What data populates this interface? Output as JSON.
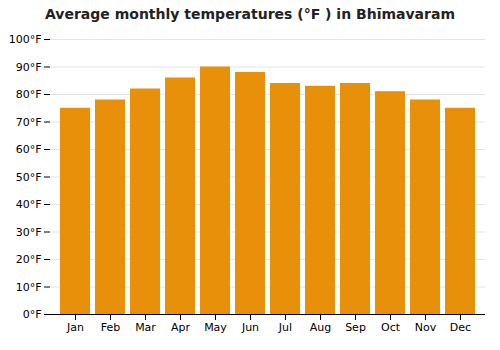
{
  "chart_data": {
    "type": "bar",
    "title": "Average monthly temperatures (°F ) in Bhīmavaram",
    "categories": [
      "Jan",
      "Feb",
      "Mar",
      "Apr",
      "May",
      "Jun",
      "Jul",
      "Aug",
      "Sep",
      "Oct",
      "Nov",
      "Dec"
    ],
    "values": [
      75,
      78,
      82,
      86,
      90,
      88,
      84,
      83,
      84,
      81,
      78,
      75
    ],
    "color": "#E8900A",
    "ylim": [
      0,
      100
    ],
    "yticks": [
      {
        "value": 0,
        "label": "0°F"
      },
      {
        "value": 10,
        "label": "10°F"
      },
      {
        "value": 20,
        "label": "20°F"
      },
      {
        "value": 30,
        "label": "30°F"
      },
      {
        "value": 40,
        "label": "40°F"
      },
      {
        "value": 50,
        "label": "50°F"
      },
      {
        "value": 60,
        "label": "60°F"
      },
      {
        "value": 70,
        "label": "70°F"
      },
      {
        "value": 80,
        "label": "80°F"
      },
      {
        "value": 90,
        "label": "90°F"
      },
      {
        "value": 100,
        "label": "100°F"
      }
    ],
    "grid": true
  }
}
